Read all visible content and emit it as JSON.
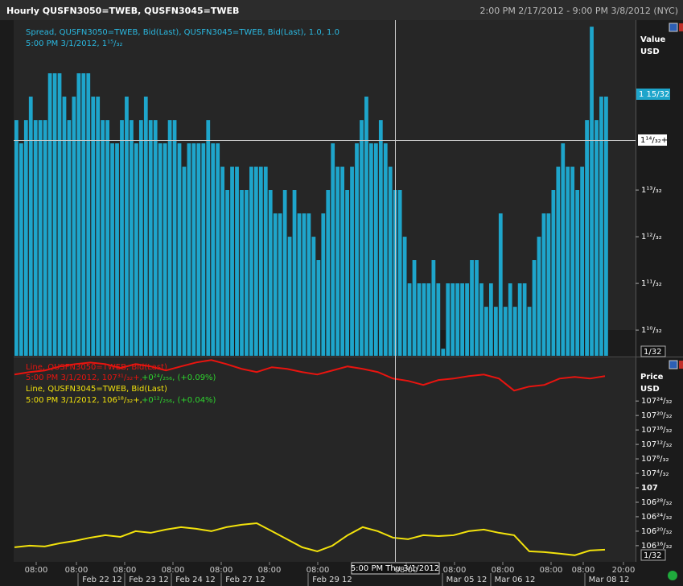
{
  "header": {
    "title": "Hourly QUSFN3050=TWEB, QUSFN3045=TWEB",
    "range": "2:00 PM 2/17/2012 - 9:00 PM 3/8/2012 (NYC)"
  },
  "x_axis": {
    "times": [
      "08:00",
      "08:00",
      "08:00",
      "08:00",
      "08:00",
      "08:00",
      "08:00",
      "08:00",
      "08:00",
      "08:00",
      "08:00",
      "08:00",
      "20:00"
    ],
    "dates": [
      "Feb 22 12",
      "Feb 23 12",
      "Feb 24 12",
      "Feb 27 12",
      "Feb 29 12",
      "Mar 05 12",
      "Mar 06 12",
      "Mar 08 12"
    ],
    "cursor": "5:00 PM Thu 3/1/2012"
  },
  "chart_data": [
    {
      "type": "bar",
      "axis_title": "Value",
      "axis_unit": "USD",
      "color": "#1ea5cb",
      "legend": "Spread, QUSFN3050=TWEB, Bid(Last), QUSFN3045=TWEB, Bid(Last),  1.0, 1.0",
      "cursor_text": "5:00 PM 3/1/2012, 1¹⁵/₃₂",
      "last_label": "1 15/32",
      "cursor_label": "1¹⁴/₃₂+",
      "increment": "1/32",
      "values": [
        1.4531,
        1.4375,
        1.4531,
        1.4688,
        1.4531,
        1.4531,
        1.4531,
        1.4844,
        1.4844,
        1.4844,
        1.4688,
        1.4531,
        1.4688,
        1.4844,
        1.4844,
        1.4844,
        1.4688,
        1.4688,
        1.4531,
        1.4531,
        1.4375,
        1.4375,
        1.4531,
        1.4688,
        1.4531,
        1.4375,
        1.4531,
        1.4688,
        1.4531,
        1.4531,
        1.4375,
        1.4375,
        1.4531,
        1.4531,
        1.4375,
        1.4219,
        1.4375,
        1.4375,
        1.4375,
        1.4375,
        1.4531,
        1.4375,
        1.4375,
        1.4219,
        1.4063,
        1.4219,
        1.4219,
        1.4063,
        1.4063,
        1.4219,
        1.4219,
        1.4219,
        1.4219,
        1.4063,
        1.3906,
        1.3906,
        1.4063,
        1.375,
        1.4063,
        1.3906,
        1.3906,
        1.3906,
        1.375,
        1.3594,
        1.3906,
        1.4063,
        1.4375,
        1.4219,
        1.4219,
        1.4063,
        1.4219,
        1.4375,
        1.4531,
        1.4688,
        1.4375,
        1.4375,
        1.4531,
        1.4375,
        1.4219,
        1.4063,
        1.4063,
        1.375,
        1.3438,
        1.3594,
        1.3438,
        1.3438,
        1.3438,
        1.3594,
        1.3438,
        1.3,
        1.3438,
        1.3438,
        1.3438,
        1.3438,
        1.3438,
        1.3594,
        1.3594,
        1.3438,
        1.3281,
        1.3438,
        1.3281,
        1.3906,
        1.3281,
        1.3438,
        1.3281,
        1.3438,
        1.3438,
        1.3281,
        1.3594,
        1.375,
        1.3906,
        1.3906,
        1.4063,
        1.4219,
        1.4375,
        1.4219,
        1.4219,
        1.4063,
        1.4219,
        1.4531,
        1.5156,
        1.4531,
        1.4688,
        1.4688
      ],
      "ylim": [
        1.2953,
        1.52
      ],
      "yticks": [
        {
          "value": 1.3125,
          "label": "1¹⁰/₃₂"
        },
        {
          "value": 1.34375,
          "label": "1¹¹/₃₂"
        },
        {
          "value": 1.375,
          "label": "1¹²/₃₂"
        },
        {
          "value": 1.40625,
          "label": "1¹³/₃₂"
        }
      ]
    },
    {
      "type": "line",
      "axis_title": "Price",
      "axis_unit": "USD",
      "increment": "1/32",
      "series": [
        {
          "name": "Line, QUSFN3050=TWEB, Bid(Last)",
          "color": "#e8140f",
          "cursor_text": "5:00 PM 3/1/2012, 107³¹/₃₂+,",
          "change_text": "+0²⁴/₂₅₆, (+0.09%)",
          "values": [
            107.979,
            108.0,
            108.014,
            108.049,
            108.069,
            108.083,
            108.069,
            108.035,
            108.069,
            108.049,
            108.014,
            108.049,
            108.083,
            108.104,
            108.069,
            108.028,
            108.0,
            108.042,
            108.028,
            108.0,
            107.979,
            108.014,
            108.049,
            108.028,
            108.0,
            107.944,
            107.924,
            107.889,
            107.931,
            107.944,
            107.965,
            107.979,
            107.944,
            107.84,
            107.875,
            107.889,
            107.944,
            107.958,
            107.944,
            107.965
          ]
        },
        {
          "name": "Line, QUSFN3045=TWEB, Bid(Last)",
          "color": "#f2e20c",
          "cursor_text": "5:00 PM 3/1/2012, 106¹⁸/₃₂+,",
          "change_text": "+0¹²/₂₅₆, (+0.04%)",
          "values": [
            106.486,
            106.5,
            106.493,
            106.521,
            106.542,
            106.569,
            106.59,
            106.576,
            106.625,
            106.611,
            106.639,
            106.66,
            106.646,
            106.625,
            106.66,
            106.681,
            106.694,
            106.625,
            106.556,
            106.486,
            106.451,
            106.5,
            106.59,
            106.66,
            106.625,
            106.569,
            106.556,
            106.59,
            106.583,
            106.59,
            106.625,
            106.639,
            106.611,
            106.59,
            106.451,
            106.444,
            106.431,
            106.417,
            106.458,
            106.465
          ]
        }
      ],
      "ylim": [
        106.36,
        108.12
      ],
      "yticks": [
        {
          "value": 106.5,
          "label": "106¹⁶/₃₂"
        },
        {
          "value": 106.625,
          "label": "106²⁰/₃₂"
        },
        {
          "value": 106.75,
          "label": "106²⁴/₃₂"
        },
        {
          "value": 106.875,
          "label": "106²⁸/₃₂"
        },
        107,
        {
          "value": 107.125,
          "label": "107⁴/₃₂"
        },
        {
          "value": 107.25,
          "label": "107⁸/₃₂"
        },
        {
          "value": 107.375,
          "label": "107¹²/₃₂"
        },
        {
          "value": 107.5,
          "label": "107¹⁶/₃₂"
        },
        {
          "value": 107.625,
          "label": "107²⁰/₃₂"
        },
        {
          "value": 107.75,
          "label": "107²⁴/₃₂"
        }
      ]
    }
  ]
}
